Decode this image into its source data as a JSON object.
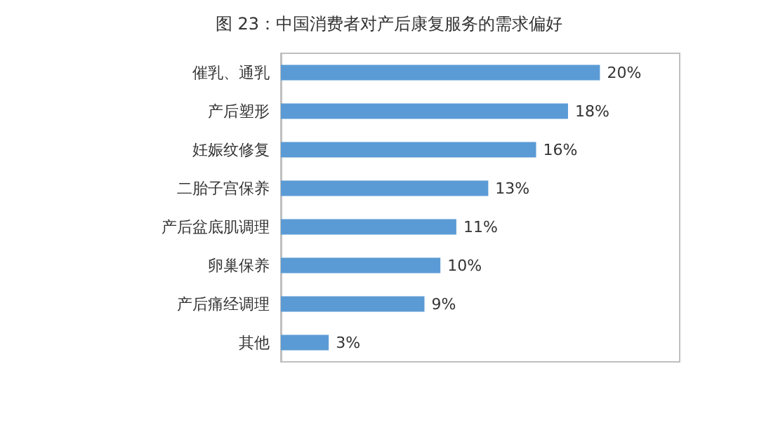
{
  "chart_data": {
    "type": "bar",
    "orientation": "horizontal",
    "title": "图 23：中国消费者对产后康复服务的需求偏好",
    "categories": [
      "催乳、通乳",
      "产后塑形",
      "妊娠纹修复",
      "二胎子宫保养",
      "产后盆底肌调理",
      "卵巢保养",
      "产后痛经调理",
      "其他"
    ],
    "values": [
      20,
      18,
      16,
      13,
      11,
      10,
      9,
      3
    ],
    "value_labels": [
      "20%",
      "18%",
      "16%",
      "13%",
      "11%",
      "10%",
      "9%",
      "3%"
    ],
    "color": "#5b9bd5"
  }
}
